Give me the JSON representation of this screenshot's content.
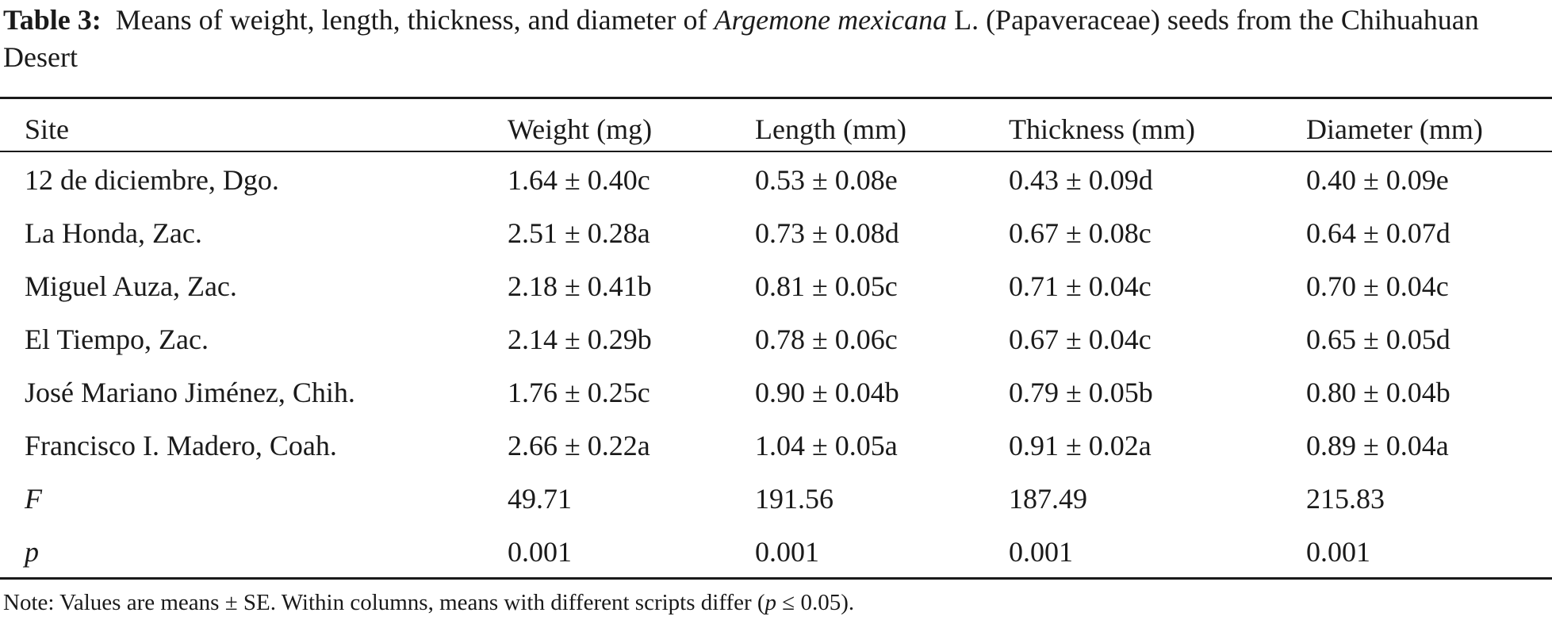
{
  "caption": {
    "label": "Table 3:",
    "text_before": "Means of weight, length, thickness, and diameter of",
    "species": "Argemone mexicana",
    "text_after": "L. (Papaveraceae) seeds from the Chihuahuan Desert"
  },
  "table": {
    "headers": [
      "Site",
      "Weight (mg)",
      "Length (mm)",
      "Thickness (mm)",
      "Diameter (mm)"
    ],
    "rows": [
      [
        "12 de diciembre, Dgo.",
        "1.64 ± 0.40c",
        "0.53 ± 0.08e",
        "0.43 ± 0.09d",
        "0.40 ± 0.09e"
      ],
      [
        "La Honda, Zac.",
        "2.51 ± 0.28a",
        "0.73 ± 0.08d",
        "0.67 ± 0.08c",
        "0.64 ± 0.07d"
      ],
      [
        "Miguel Auza, Zac.",
        "2.18 ± 0.41b",
        "0.81 ± 0.05c",
        "0.71 ± 0.04c",
        "0.70 ± 0.04c"
      ],
      [
        "El Tiempo, Zac.",
        "2.14 ± 0.29b",
        "0.78 ± 0.06c",
        "0.67 ± 0.04c",
        "0.65 ± 0.05d"
      ],
      [
        "José Mariano Jiménez, Chih.",
        "1.76 ± 0.25c",
        "0.90 ± 0.04b",
        "0.79 ± 0.05b",
        "0.80 ± 0.04b"
      ],
      [
        "Francisco I. Madero, Coah.",
        "2.66 ± 0.22a",
        "1.04 ± 0.05a",
        "0.91 ± 0.02a",
        "0.89 ± 0.04a"
      ],
      [
        "F",
        "49.71",
        "191.56",
        "187.49",
        "215.83"
      ],
      [
        "p",
        "0.001",
        "0.001",
        "0.001",
        "0.001"
      ]
    ]
  },
  "note": {
    "before": "Note: Values are means ± SE. Within columns, means with different scripts differ (",
    "italic": "p",
    "after": " ≤ 0.05)."
  }
}
